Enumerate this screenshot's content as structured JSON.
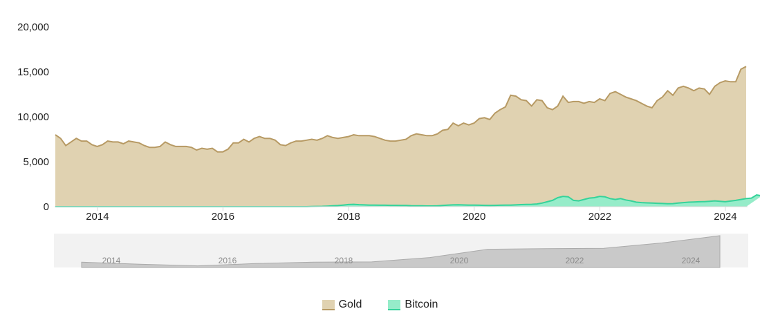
{
  "chart_data": {
    "type": "area",
    "title": "",
    "xlabel": "",
    "ylabel": "",
    "ylim": [
      0,
      20000
    ],
    "yticks": [
      "0",
      "5,000",
      "10,000",
      "15,000",
      "20,000"
    ],
    "xticks": [
      "2014",
      "2016",
      "2018",
      "2020",
      "2022",
      "2024"
    ],
    "grid": false,
    "legend_position": "bottom-center",
    "x_start": "2013-05",
    "x_end": "2024-05",
    "stacked": false,
    "series": [
      {
        "name": "Gold",
        "color": "#b79a64",
        "fill": "#e0d2b1",
        "values": [
          8000,
          7600,
          6800,
          7200,
          7600,
          7300,
          7300,
          6900,
          6700,
          6900,
          7300,
          7200,
          7200,
          7000,
          7300,
          7200,
          7100,
          6800,
          6600,
          6600,
          6700,
          7200,
          6900,
          6700,
          6700,
          6700,
          6600,
          6300,
          6500,
          6400,
          6500,
          6100,
          6100,
          6400,
          7100,
          7100,
          7500,
          7200,
          7600,
          7800,
          7600,
          7600,
          7400,
          6900,
          6800,
          7100,
          7300,
          7300,
          7400,
          7500,
          7400,
          7600,
          7900,
          7700,
          7600,
          7700,
          7800,
          8000,
          7900,
          7900,
          7900,
          7800,
          7600,
          7400,
          7300,
          7300,
          7400,
          7500,
          7900,
          8100,
          8000,
          7900,
          7900,
          8100,
          8500,
          8600,
          9300,
          9000,
          9300,
          9100,
          9300,
          9800,
          9900,
          9700,
          10400,
          10800,
          11100,
          12400,
          12300,
          11900,
          11800,
          11200,
          11900,
          11800,
          11000,
          10800,
          11200,
          12300,
          11600,
          11700,
          11700,
          11500,
          11700,
          11600,
          12000,
          11800,
          12600,
          12800,
          12500,
          12200,
          12000,
          11800,
          11500,
          11200,
          11000,
          11800,
          12200,
          12900,
          12400,
          13200,
          13400,
          13200,
          12900,
          13200,
          13100,
          12500,
          13400,
          13800,
          14000,
          13900,
          13900,
          15300,
          15600
        ]
      },
      {
        "name": "Bitcoin",
        "color": "#34d39a",
        "fill": "#96ecc9",
        "values": [
          0,
          0,
          0,
          0,
          0,
          0,
          0,
          0,
          0,
          0,
          0,
          0,
          0,
          0,
          0,
          0,
          0,
          0,
          0,
          0,
          0,
          0,
          0,
          0,
          0,
          0,
          0,
          0,
          0,
          0,
          0,
          0,
          0,
          0,
          0,
          0,
          0,
          0,
          0,
          0,
          0,
          0,
          0,
          0,
          0,
          0,
          0,
          0,
          0,
          20,
          30,
          40,
          60,
          90,
          120,
          180,
          240,
          260,
          220,
          200,
          180,
          170,
          160,
          160,
          150,
          150,
          140,
          130,
          110,
          100,
          90,
          80,
          80,
          90,
          130,
          170,
          200,
          210,
          190,
          180,
          170,
          160,
          150,
          140,
          150,
          160,
          170,
          180,
          200,
          230,
          250,
          260,
          300,
          400,
          550,
          700,
          1000,
          1150,
          1100,
          700,
          650,
          800,
          950,
          1000,
          1150,
          1100,
          900,
          800,
          900,
          750,
          650,
          500,
          450,
          420,
          400,
          380,
          350,
          330,
          340,
          400,
          450,
          500,
          520,
          550,
          560,
          600,
          650,
          600,
          550,
          620,
          700,
          800,
          900,
          950,
          1300,
          1200
        ]
      }
    ]
  },
  "navigator": {
    "ticks": [
      "2014",
      "2016",
      "2018",
      "2020",
      "2022",
      "2024"
    ],
    "values": [
      7600,
      7000,
      6500,
      7200,
      7600,
      7700,
      9000,
      11500,
      11700,
      11800,
      13400,
      15600
    ]
  }
}
